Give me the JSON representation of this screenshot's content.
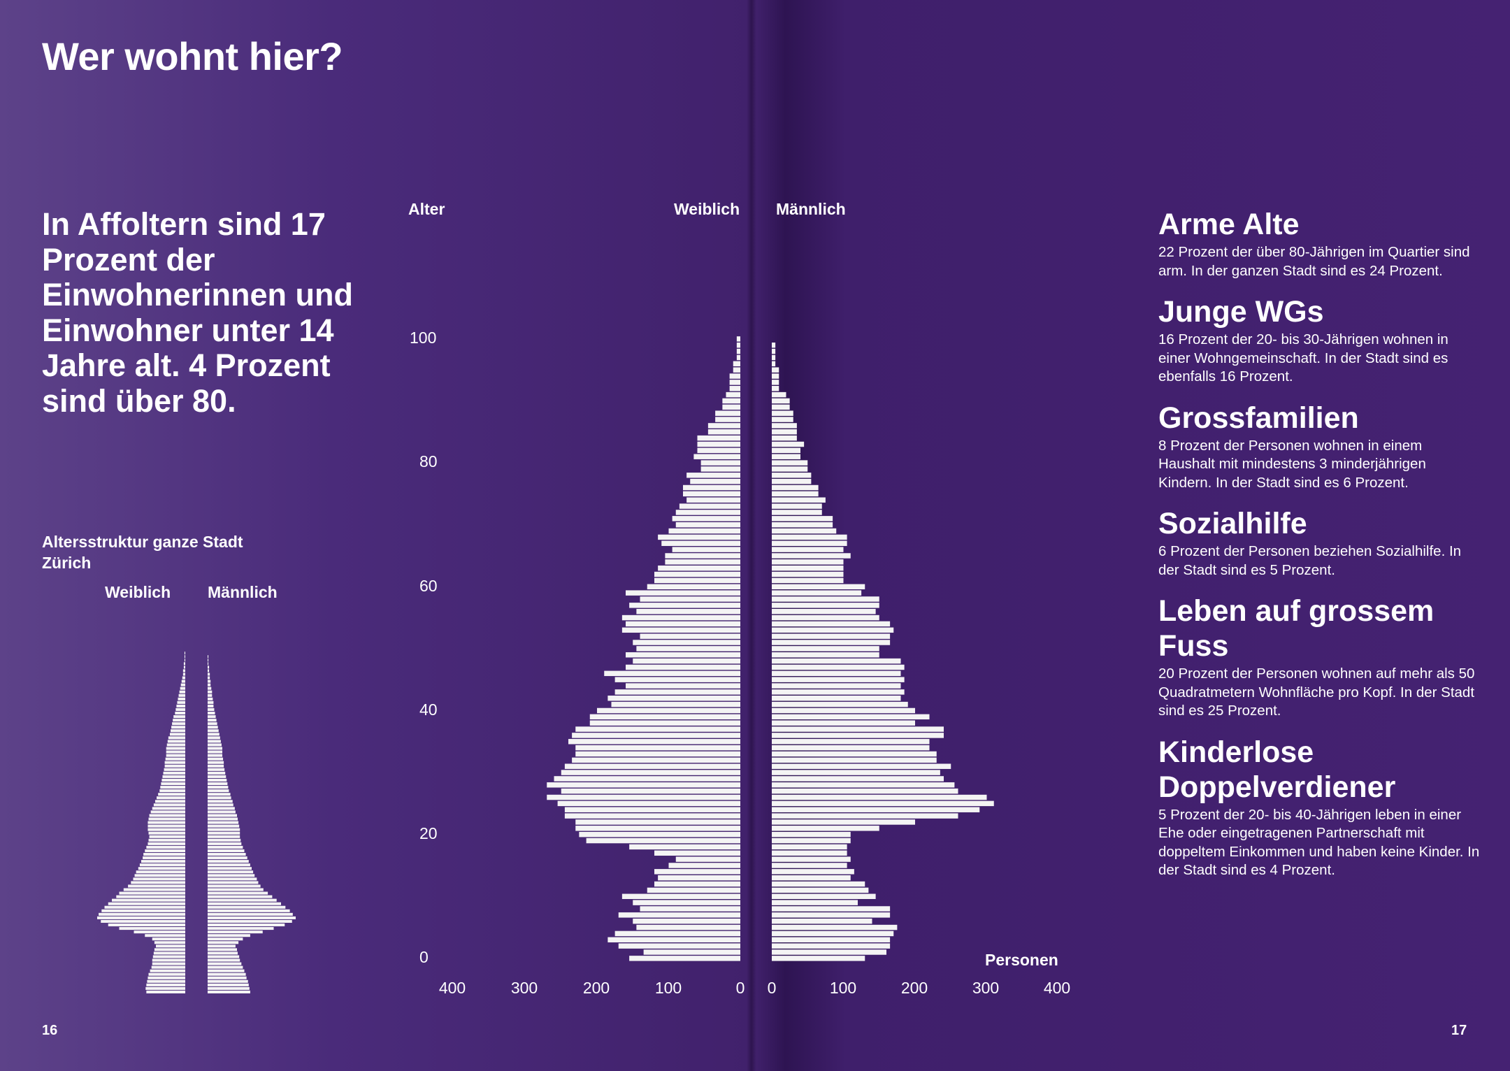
{
  "page": {
    "title": "Wer wohnt hier?",
    "lead": "In Affoltern sind 17 Prozent der Einwohnerinnen und Einwohner unter 14 Jahre alt. 4 Prozent sind über 80.",
    "page_left": "16",
    "page_right": "17"
  },
  "small_chart": {
    "title": "Altersstruktur ganze Stadt Zürich",
    "female_label": "Weiblich",
    "male_label": "Männlich"
  },
  "main_chart": {
    "age_label": "Alter",
    "female_label": "Weiblich",
    "male_label": "Männlich",
    "x_unit_label": "Personen",
    "y_ticks": [
      "0",
      "20",
      "40",
      "60",
      "80",
      "100"
    ],
    "x_ticks_left": [
      "400",
      "300",
      "200",
      "100",
      "0"
    ],
    "x_ticks_right": [
      "0",
      "100",
      "200",
      "300",
      "400"
    ]
  },
  "facts": [
    {
      "heading": "Arme Alte",
      "text": "22 Prozent der über 80-Jährigen im Quartier sind arm. In der ganzen Stadt sind es 24 Prozent."
    },
    {
      "heading": "Junge WGs",
      "text": "16 Prozent der 20- bis 30-Jährigen wohnen in einer Wohngemeinschaft. In der Stadt sind es ebenfalls 16 Prozent."
    },
    {
      "heading": "Grossfamilien",
      "text": "8 Prozent der Personen wohnen in einem Haushalt mit mindestens 3 minderjährigen Kindern. In der Stadt sind es 6 Prozent."
    },
    {
      "heading": "Sozialhilfe",
      "text": "6 Prozent der Personen beziehen Sozialhilfe. In der Stadt sind es 5 Prozent."
    },
    {
      "heading": "Leben auf grossem Fuss",
      "text": "20 Prozent der Personen wohnen auf mehr als 50 Quadratmetern Wohnfläche pro Kopf. In der Stadt sind es 25 Prozent."
    },
    {
      "heading": "Kinderlose Doppelverdiener",
      "text": "5 Prozent der 20- bis 40-Jährigen leben in einer Ehe oder eingetragenen Partnerschaft mit doppeltem Einkommen und haben keine Kinder. In der Stadt sind es 4 Prozent."
    }
  ],
  "chart_data": [
    {
      "type": "bar",
      "orientation": "horizontal",
      "subtype": "population-pyramid",
      "xlabel": "Personen",
      "ylabel": "Alter",
      "xlim": [
        0,
        400
      ],
      "ylim": [
        0,
        100
      ],
      "ages": [
        0,
        1,
        2,
        3,
        4,
        5,
        6,
        7,
        8,
        9,
        10,
        11,
        12,
        13,
        14,
        15,
        16,
        17,
        18,
        19,
        20,
        21,
        22,
        23,
        24,
        25,
        26,
        27,
        28,
        29,
        30,
        31,
        32,
        33,
        34,
        35,
        36,
        37,
        38,
        39,
        40,
        41,
        42,
        43,
        44,
        45,
        46,
        47,
        48,
        49,
        50,
        51,
        52,
        53,
        54,
        55,
        56,
        57,
        58,
        59,
        60,
        61,
        62,
        63,
        64,
        65,
        66,
        67,
        68,
        69,
        70,
        71,
        72,
        73,
        74,
        75,
        76,
        77,
        78,
        79,
        80,
        81,
        82,
        83,
        84,
        85,
        86,
        87,
        88,
        89,
        90,
        91,
        92,
        93,
        94,
        95,
        96,
        97,
        98,
        99,
        100
      ],
      "series": [
        {
          "name": "Weiblich",
          "values": [
            155,
            135,
            170,
            185,
            175,
            145,
            150,
            170,
            140,
            150,
            165,
            130,
            120,
            115,
            120,
            100,
            90,
            120,
            155,
            215,
            225,
            230,
            230,
            245,
            245,
            255,
            270,
            250,
            270,
            260,
            250,
            245,
            235,
            230,
            230,
            240,
            235,
            230,
            210,
            210,
            200,
            180,
            185,
            175,
            160,
            175,
            190,
            160,
            150,
            160,
            145,
            150,
            140,
            165,
            160,
            165,
            145,
            155,
            140,
            160,
            130,
            120,
            120,
            115,
            105,
            105,
            95,
            110,
            115,
            100,
            90,
            95,
            90,
            85,
            75,
            80,
            80,
            70,
            75,
            55,
            55,
            65,
            60,
            60,
            60,
            45,
            45,
            35,
            35,
            25,
            25,
            20,
            15,
            15,
            15,
            10,
            10,
            5,
            5,
            5,
            5
          ]
        },
        {
          "name": "Männlich",
          "values": [
            130,
            160,
            165,
            165,
            170,
            175,
            140,
            165,
            165,
            120,
            145,
            135,
            130,
            110,
            115,
            105,
            110,
            105,
            105,
            110,
            110,
            150,
            200,
            260,
            290,
            310,
            300,
            260,
            255,
            240,
            235,
            250,
            230,
            230,
            220,
            220,
            240,
            240,
            200,
            220,
            200,
            190,
            180,
            185,
            180,
            185,
            180,
            185,
            180,
            150,
            150,
            165,
            165,
            170,
            165,
            150,
            145,
            150,
            150,
            125,
            130,
            100,
            100,
            100,
            100,
            110,
            100,
            105,
            105,
            90,
            85,
            85,
            70,
            70,
            75,
            65,
            65,
            55,
            55,
            50,
            50,
            40,
            40,
            45,
            35,
            35,
            35,
            30,
            30,
            25,
            25,
            20,
            10,
            10,
            10,
            10,
            5,
            5,
            5,
            5,
            0
          ]
        }
      ]
    },
    {
      "type": "bar",
      "orientation": "horizontal",
      "subtype": "population-pyramid",
      "title": "Altersstruktur ganze Stadt Zürich",
      "ylim": [
        0,
        100
      ],
      "ages": [
        0,
        1,
        2,
        3,
        4,
        5,
        6,
        7,
        8,
        9,
        10,
        11,
        12,
        13,
        14,
        15,
        16,
        17,
        18,
        19,
        20,
        21,
        22,
        23,
        24,
        25,
        26,
        27,
        28,
        29,
        30,
        31,
        32,
        33,
        34,
        35,
        36,
        37,
        38,
        39,
        40,
        41,
        42,
        43,
        44,
        45,
        46,
        47,
        48,
        49,
        50,
        51,
        52,
        53,
        54,
        55,
        56,
        57,
        58,
        59,
        60,
        61,
        62,
        63,
        64,
        65,
        66,
        67,
        68,
        69,
        70,
        71,
        72,
        73,
        74,
        75,
        76,
        77,
        78,
        79,
        80,
        81,
        82,
        83,
        84,
        85,
        86,
        87,
        88,
        89,
        90,
        91,
        92,
        93,
        94,
        95,
        96,
        97,
        98,
        99,
        100
      ],
      "series": [
        {
          "name": "Weiblich",
          "values": [
            53,
            54,
            53,
            52,
            51,
            50,
            48,
            46,
            45,
            45,
            44,
            43,
            42,
            40,
            42,
            45,
            55,
            70,
            90,
            105,
            115,
            120,
            118,
            114,
            110,
            105,
            100,
            94,
            90,
            84,
            78,
            74,
            71,
            69,
            67,
            64,
            62,
            60,
            58,
            57,
            55,
            53,
            51,
            50,
            49,
            50,
            51,
            51,
            51,
            50,
            49,
            47,
            45,
            43,
            41,
            39,
            37,
            35,
            34,
            33,
            32,
            31,
            30,
            29,
            28,
            28,
            27,
            26,
            26,
            26,
            25,
            24,
            23,
            21,
            20,
            19,
            18,
            17,
            16,
            14,
            13,
            12,
            11,
            10,
            9,
            8,
            7,
            6,
            5,
            4,
            3,
            3,
            2,
            2,
            1,
            1,
            1,
            0,
            0,
            0,
            0
          ]
        },
        {
          "name": "Männlich",
          "values": [
            58,
            57,
            56,
            55,
            53,
            52,
            50,
            48,
            46,
            44,
            43,
            41,
            40,
            38,
            42,
            48,
            58,
            75,
            90,
            105,
            115,
            120,
            116,
            112,
            106,
            100,
            94,
            88,
            82,
            76,
            72,
            69,
            67,
            64,
            62,
            60,
            58,
            56,
            54,
            52,
            50,
            48,
            46,
            45,
            44,
            44,
            44,
            43,
            42,
            41,
            40,
            38,
            37,
            35,
            34,
            32,
            31,
            29,
            28,
            27,
            26,
            25,
            24,
            23,
            22,
            22,
            21,
            20,
            20,
            20,
            19,
            18,
            17,
            16,
            15,
            14,
            13,
            12,
            11,
            10,
            9,
            8,
            8,
            7,
            6,
            6,
            5,
            4,
            4,
            3,
            3,
            2,
            2,
            1,
            1,
            1,
            0,
            0,
            0,
            0,
            0
          ]
        }
      ]
    }
  ]
}
